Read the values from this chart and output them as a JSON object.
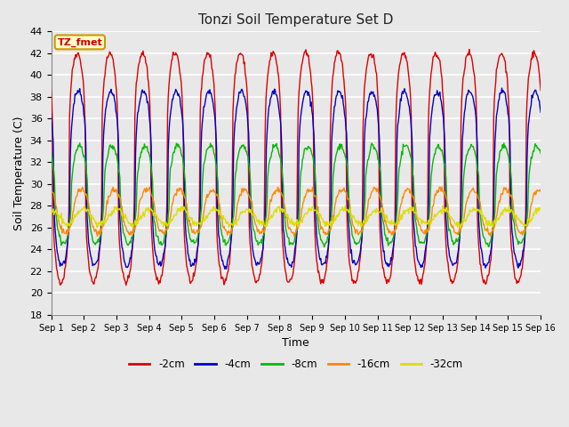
{
  "title": "Tonzi Soil Temperature Set D",
  "xlabel": "Time",
  "ylabel": "Soil Temperature (C)",
  "ylim": [
    18,
    44
  ],
  "yticks": [
    18,
    20,
    22,
    24,
    26,
    28,
    30,
    32,
    34,
    36,
    38,
    40,
    42,
    44
  ],
  "background_color": "#e0e0e0",
  "plot_bg_color": "#e8e8e8",
  "grid_color": "#ffffff",
  "n_days": 15,
  "points_per_day": 48,
  "series_params": {
    "-2cm": {
      "color": "#dd0000",
      "lw": 1.0,
      "amplitude": 10.5,
      "mean": 31.5,
      "phase_shift": 0.55,
      "peak_sharpness": 3.0
    },
    "-4cm": {
      "color": "#0000cc",
      "lw": 1.0,
      "amplitude": 8.0,
      "mean": 30.5,
      "phase_shift": 0.58,
      "peak_sharpness": 2.5
    },
    "-8cm": {
      "color": "#00bb00",
      "lw": 1.0,
      "amplitude": 4.5,
      "mean": 29.0,
      "phase_shift": 0.62,
      "peak_sharpness": 2.0
    },
    "-16cm": {
      "color": "#ff8800",
      "lw": 1.0,
      "amplitude": 2.0,
      "mean": 27.5,
      "phase_shift": 0.68,
      "peak_sharpness": 1.5
    },
    "-32cm": {
      "color": "#dddd00",
      "lw": 1.0,
      "amplitude": 0.7,
      "mean": 27.0,
      "phase_shift": 0.75,
      "peak_sharpness": 1.0
    }
  },
  "annotation_text": "TZ_fmet",
  "legend_labels": [
    "-2cm",
    "-4cm",
    "-8cm",
    "-16cm",
    "-32cm"
  ],
  "legend_colors": [
    "#dd0000",
    "#0000cc",
    "#00bb00",
    "#ff8800",
    "#dddd00"
  ]
}
